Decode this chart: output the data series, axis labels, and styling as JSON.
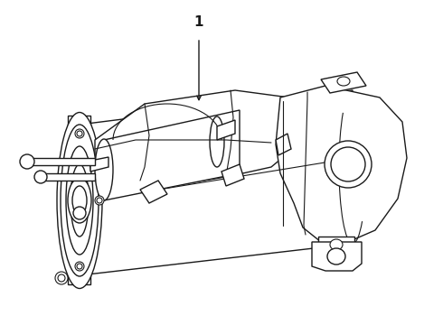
{
  "bg_color": "#ffffff",
  "line_color": "#1a1a1a",
  "line_width": 1.0,
  "label_text": "1",
  "figsize": [
    4.9,
    3.6
  ],
  "dpi": 100
}
